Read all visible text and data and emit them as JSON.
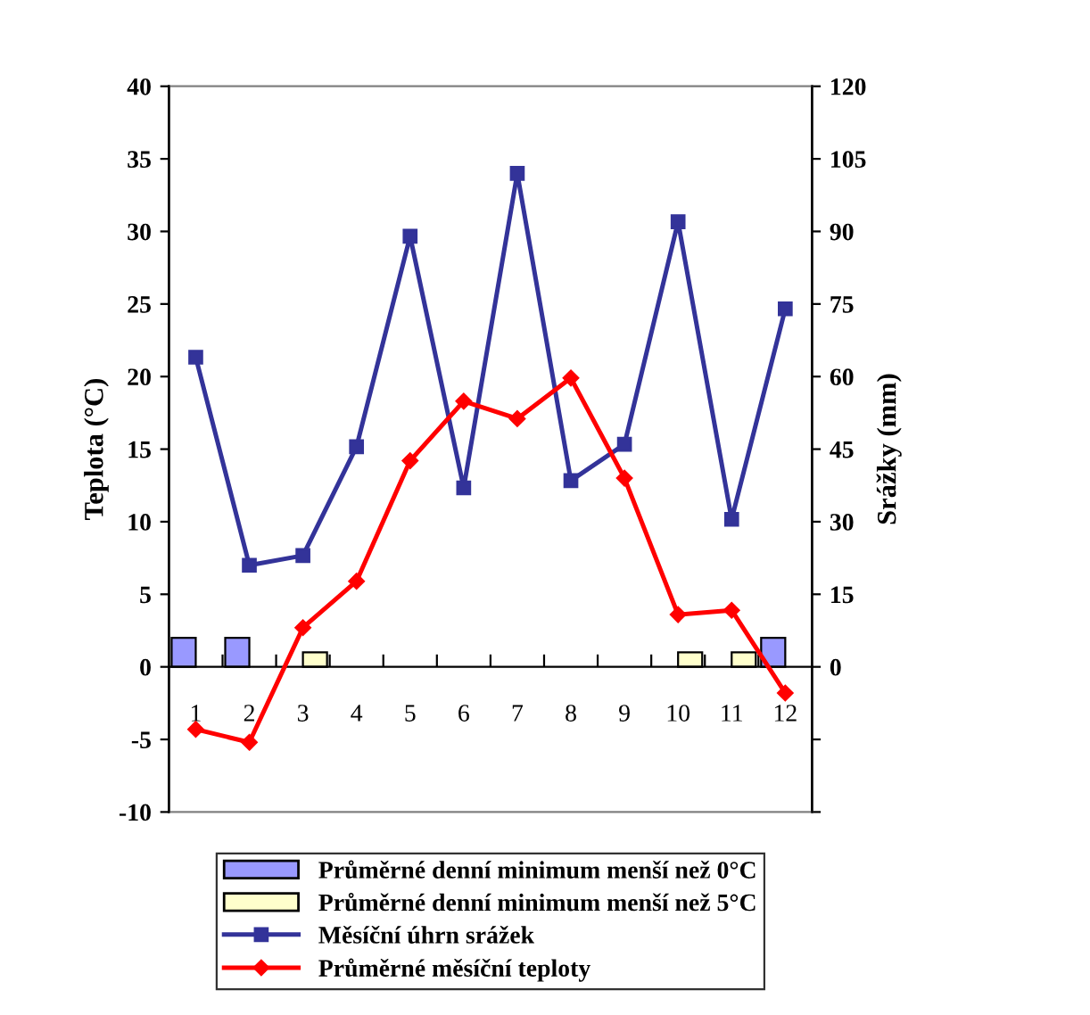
{
  "chart_data": {
    "type": "bar",
    "categories": [
      "1",
      "2",
      "3",
      "4",
      "5",
      "6",
      "7",
      "8",
      "9",
      "10",
      "11",
      "12"
    ],
    "ylabel": "Teplota (°C)",
    "y2label": "Srážky (mm)",
    "ylim": [
      -10,
      40
    ],
    "yticks": [
      -10,
      -5,
      0,
      5,
      10,
      15,
      20,
      25,
      30,
      35,
      40
    ],
    "y2lim": [
      -30,
      120
    ],
    "y2ticks": [
      {
        "value": -30,
        "label": null
      },
      {
        "value": -15,
        "label": null
      },
      0,
      15,
      30,
      45,
      60,
      75,
      90,
      105,
      120
    ],
    "legend": "bottom",
    "grid": false,
    "series": [
      {
        "name": "Průměrné denní minimum menší než 0°C",
        "color": "#9999ff",
        "values": [
          2,
          2,
          null,
          null,
          null,
          null,
          null,
          null,
          null,
          null,
          null,
          2
        ]
      },
      {
        "name": "Průměrné denní minimum menší než 5°C",
        "color": "#ffffcc",
        "values": [
          null,
          null,
          1,
          null,
          null,
          null,
          null,
          null,
          null,
          1,
          1,
          null
        ]
      },
      {
        "name": "Měsíční úhrn srážek",
        "type": "line",
        "axis": "y2",
        "marker": "square",
        "color": "#333399",
        "values": [
          64,
          21,
          23,
          45.5,
          89,
          37,
          102,
          38.5,
          46,
          92,
          30.5,
          74
        ]
      },
      {
        "name": "Průměrné měsíční teploty",
        "type": "line",
        "marker": "diamond",
        "color": "#ff0000",
        "values": [
          -4.3,
          -5.2,
          2.7,
          5.9,
          14.2,
          18.3,
          17.1,
          19.9,
          13,
          3.6,
          3.9,
          -1.8
        ]
      }
    ]
  }
}
